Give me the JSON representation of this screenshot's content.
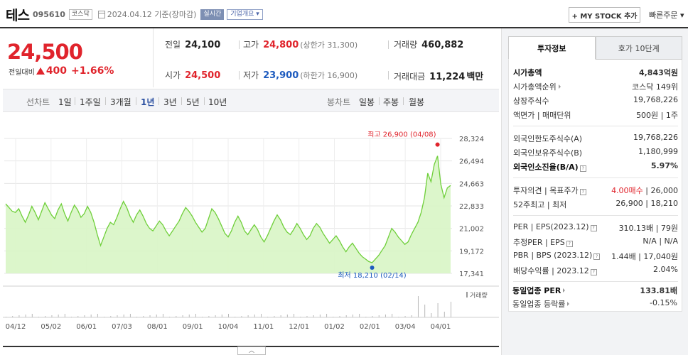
{
  "header": {
    "name": "테스",
    "code": "095610",
    "market": "코스닥",
    "date": "2024.04.12 기준(장마감)",
    "realtime_label": "실시간",
    "overview_label": "기업개요 ▾",
    "mystock_label": "+ MY STOCK 추가",
    "quick_order_label": "빠른주문 ▾"
  },
  "price": {
    "current": "24,500",
    "change_label": "전일대비",
    "change": "400",
    "change_rate": "+1.66%"
  },
  "stats": {
    "prev_label": "전일",
    "prev": "24,100",
    "high_label": "고가",
    "high": "24,800",
    "upper_limit": "(상한가 31,300)",
    "volume_label": "거래량",
    "volume": "460,882",
    "open_label": "시가",
    "open": "24,500",
    "low_label": "저가",
    "low": "23,900",
    "lower_limit": "(하한가 16,900)",
    "amount_label": "거래대금",
    "amount": "11,224",
    "amount_unit": "백만"
  },
  "period_bar": {
    "line_label": "선차트",
    "line_items": [
      "1일",
      "1주일",
      "3개월",
      "1년",
      "3년",
      "5년",
      "10년"
    ],
    "active": "1년",
    "candle_label": "봉차트",
    "candle_items": [
      "일봉",
      "주봉",
      "월봉"
    ]
  },
  "chart_data": {
    "type": "area",
    "x_ticks": [
      "04/12",
      "05/02",
      "06/01",
      "07/03",
      "08/01",
      "09/01",
      "10/04",
      "11/01",
      "12/01",
      "01/02",
      "02/01",
      "03/04",
      "04/01"
    ],
    "y_ticks": [
      "28,324",
      "26,494",
      "24,663",
      "22,833",
      "21,002",
      "19,172",
      "17,341"
    ],
    "ylim": [
      17341,
      28324
    ],
    "series": [
      {
        "values": [
          23000,
          22700,
          22400,
          22300,
          22600,
          22000,
          21500,
          22100,
          22800,
          22300,
          21700,
          22400,
          23100,
          22600,
          22100,
          21800,
          22500,
          23000,
          22200,
          21600,
          22300,
          22900,
          22500,
          21900,
          22200,
          22800,
          22300,
          21500,
          20500,
          19600,
          20300,
          21000,
          21500,
          21300,
          21900,
          22600,
          23200,
          22700,
          22000,
          21500,
          22100,
          22500,
          22000,
          21400,
          21000,
          20800,
          21200,
          21600,
          21300,
          20800,
          20400,
          20800,
          21200,
          21600,
          22200,
          22700,
          22400,
          22000,
          21500,
          21100,
          20700,
          21000,
          21800,
          22600,
          22300,
          21800,
          21200,
          20600,
          20300,
          20800,
          21500,
          22000,
          21500,
          20800,
          20500,
          20900,
          21300,
          20900,
          20300,
          19900,
          20400,
          21000,
          21600,
          22100,
          21700,
          21100,
          20700,
          20500,
          20900,
          21400,
          21000,
          20500,
          20100,
          20400,
          21000,
          21400,
          21100,
          20600,
          20200,
          19800,
          20100,
          20400,
          20000,
          19500,
          19100,
          19500,
          19800,
          19400,
          19000,
          18700,
          18500,
          18300,
          18210,
          18500,
          18800,
          19200,
          19600,
          20300,
          21000,
          20700,
          20300,
          20000,
          19700,
          19900,
          20500,
          21000,
          21500,
          22300,
          23500,
          25500,
          24800,
          26200,
          26900,
          24600,
          23500,
          24300,
          24500
        ]
      }
    ],
    "max_label": "최고 26,900 (04/08)",
    "min_label": "최저 18,210 (02/14)",
    "volume_label": "거래량",
    "line_color": "#6fcf3a",
    "fill_color": "#d8f5c5",
    "max_color": "#e0242c",
    "min_color": "#1d5bbf"
  },
  "panel": {
    "tab_info": "투자정보",
    "tab_quote": "호가 10단계",
    "rows": [
      {
        "l": "시가총액",
        "r": "4,843억원"
      },
      {
        "l": "시가총액순위",
        "r": "코스닥 149위"
      },
      {
        "l": "상장주식수",
        "r": "19,768,226"
      },
      {
        "l": "액면가 | 매매단위",
        "r": "500원 | 1주"
      },
      {
        "l": "외국인한도주식수(A)",
        "r": "19,768,226"
      },
      {
        "l": "외국인보유주식수(B)",
        "r": "1,180,999"
      },
      {
        "l": "외국인소진율(B/A)",
        "r": "5.97%"
      },
      {
        "l": "투자의견 | 목표주가",
        "r1": "4.00매수",
        "r2": "26,000"
      },
      {
        "l": "52주최고 | 최저",
        "r": "26,900 | 18,210"
      },
      {
        "l": "PER | EPS(2023.12)",
        "r": "310.13배 | 79원"
      },
      {
        "l": "추정PER | EPS",
        "r": "N/A | N/A"
      },
      {
        "l": "PBR | BPS (2023.12)",
        "r": "1.44배 | 17,040원"
      },
      {
        "l": "배당수익률 | 2023.12",
        "r": "2.04%"
      },
      {
        "l": "동일업종 PER",
        "r": "133.81배"
      },
      {
        "l": "동일업종 등락률",
        "r": "-0.15%"
      }
    ]
  }
}
